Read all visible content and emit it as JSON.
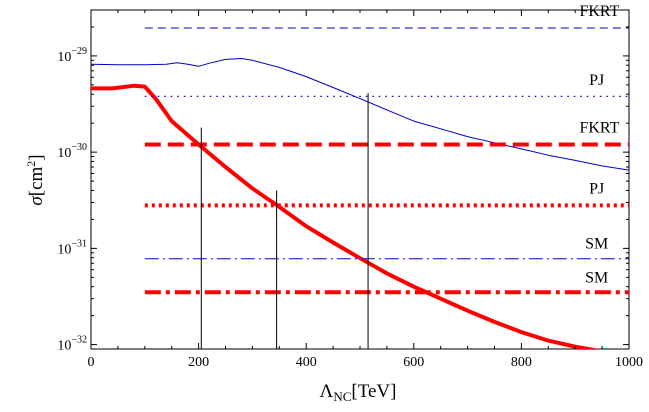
{
  "chart_data": {
    "type": "line",
    "title": "",
    "xlabel": {
      "main": "Λ",
      "sub": "NC",
      "unit": "[TeV]"
    },
    "ylabel": {
      "main": "σ",
      "unit_open": "[cm",
      "unit_sup": "2",
      "unit_close": "]"
    },
    "xlim": [
      0,
      1000
    ],
    "ylim": [
      9e-33,
      3e-29
    ],
    "yscale": "log",
    "grid": false,
    "legend": "none",
    "x_ticks": [
      0,
      200,
      400,
      600,
      800,
      1000
    ],
    "x_tick_labels": [
      "0",
      "200",
      "400",
      "600",
      "800",
      "1000"
    ],
    "y_ticks": [
      {
        "value": 1e-29,
        "mant": "10",
        "exp": "−29"
      },
      {
        "value": 1e-30,
        "mant": "10",
        "exp": "−30"
      },
      {
        "value": 1e-31,
        "mant": "10",
        "exp": "−31"
      },
      {
        "value": 1e-32,
        "mant": "10",
        "exp": "−32"
      }
    ],
    "series": [
      {
        "color": "#0000cc",
        "width": 1,
        "dash": "",
        "x": [
          0,
          50,
          100,
          140,
          160,
          180,
          200,
          220,
          250,
          280,
          300,
          350,
          400,
          450,
          500,
          550,
          600,
          650,
          700,
          750,
          800,
          850,
          900,
          950,
          1000
        ],
        "y": [
          8.2e-30,
          8.1e-30,
          8.1e-30,
          8.2e-30,
          8.5e-30,
          8.2e-30,
          7.8e-30,
          8.4e-30,
          9.2e-30,
          9.4e-30,
          9e-30,
          7.6e-30,
          6.1e-30,
          4.7e-30,
          3.6e-30,
          2.75e-30,
          2.1e-30,
          1.75e-30,
          1.45e-30,
          1.25e-30,
          1.08e-30,
          9.3e-31,
          8.2e-31,
          7.2e-31,
          6.5e-31
        ]
      },
      {
        "color": "#ff0000",
        "width": 4,
        "dash": "",
        "x": [
          0,
          40,
          80,
          100,
          120,
          150,
          200,
          250,
          300,
          350,
          400,
          450,
          500,
          550,
          600,
          650,
          700,
          750,
          800,
          850,
          900,
          950
        ],
        "y": [
          4.6e-30,
          4.6e-30,
          4.9e-30,
          4.8e-30,
          3.6e-30,
          2.1e-30,
          1.2e-30,
          7e-31,
          4.2e-31,
          2.7e-31,
          1.7e-31,
          1.15e-31,
          7.9e-32,
          5.5e-32,
          4e-32,
          3e-32,
          2.25e-32,
          1.72e-32,
          1.35e-32,
          1.1e-32,
          9.5e-33,
          8.5e-33
        ]
      }
    ],
    "hlines": [
      {
        "label": "FKRT",
        "y": 1.95e-29,
        "x_start": 100,
        "x_end": 1000,
        "color": "#0000cc",
        "width": 1,
        "dash": "8,5",
        "label_x": 945,
        "label_y": 2.6e-29
      },
      {
        "label": "PJ",
        "y": 3.8e-30,
        "x_start": 100,
        "x_end": 1000,
        "color": "#0000cc",
        "width": 1.2,
        "dash": "1.5,5",
        "label_x": 940,
        "label_y": 5e-30
      },
      {
        "label": "FKRT",
        "y": 1.2e-30,
        "x_start": 100,
        "x_end": 1000,
        "color": "#ff0000",
        "width": 4,
        "dash": "16,7",
        "label_x": 945,
        "label_y": 1.6e-30
      },
      {
        "label": "PJ",
        "y": 2.8e-31,
        "x_start": 100,
        "x_end": 1000,
        "color": "#ff0000",
        "width": 4,
        "dash": "3,4",
        "label_x": 940,
        "label_y": 3.7e-31
      },
      {
        "label": "SM",
        "y": 7.8e-32,
        "x_start": 100,
        "x_end": 1000,
        "color": "#0000cc",
        "width": 1,
        "dash": "14,4,2,4",
        "label_x": 940,
        "label_y": 1e-31
      },
      {
        "label": "SM",
        "y": 3.5e-32,
        "x_start": 100,
        "x_end": 1000,
        "color": "#ff0000",
        "width": 4,
        "dash": "16,5,4,5",
        "label_x": 940,
        "label_y": 4.4e-32
      }
    ],
    "vlines": [
      {
        "x": 205,
        "y_top": 1.8e-30
      },
      {
        "x": 345,
        "y_top": 4e-31
      },
      {
        "x": 515,
        "y_top": 4.1e-30
      }
    ]
  }
}
